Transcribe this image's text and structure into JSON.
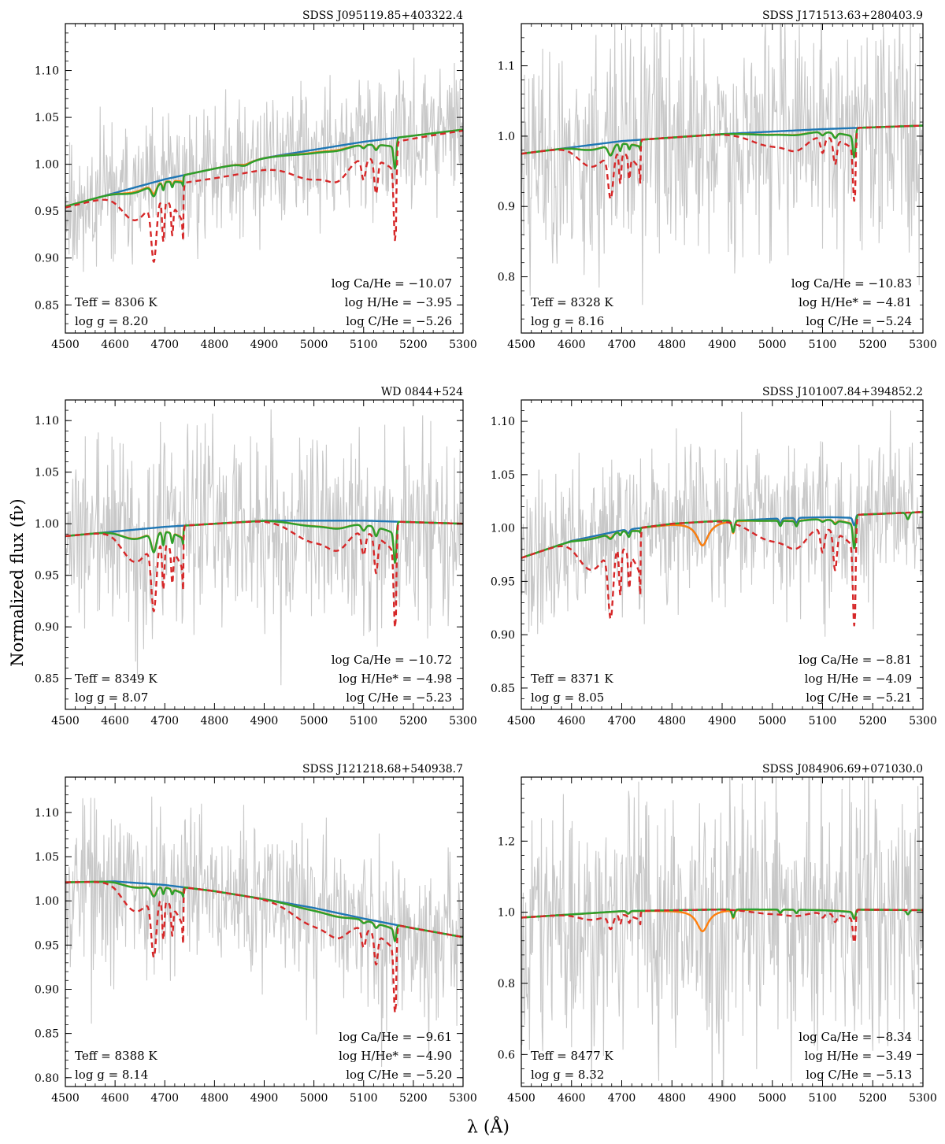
{
  "figure": {
    "ylabel": "Normalized flux (fν)",
    "xlabel": "λ (Å)"
  },
  "series_styles": {
    "observed": {
      "color": "#c8c8c8"
    },
    "blue": {
      "color": "#1f77b4"
    },
    "orange": {
      "color": "#ff7f0e"
    },
    "green": {
      "color": "#2ca02c"
    },
    "red_dashed": {
      "color": "#d62728"
    }
  },
  "chart_data": [
    {
      "type": "line",
      "title": "SDSS J095119.85+403322.4",
      "xlim": [
        4500,
        5300
      ],
      "ylim": [
        0.82,
        1.15
      ],
      "yticks": [
        0.85,
        0.9,
        0.95,
        1.0,
        1.05,
        1.1
      ],
      "ytick_labels": [
        "0.85",
        "0.90",
        "0.95",
        "1.00",
        "1.05",
        "1.10"
      ],
      "xticks": [
        4500,
        4600,
        4700,
        4800,
        4900,
        5000,
        5100,
        5200,
        5300
      ],
      "noise": {
        "amp": 0.035,
        "seed": 11
      },
      "left_text": [
        "Teff = 8306 K",
        "log g = 8.20"
      ],
      "right_text": [
        "log Ca/He = −10.07",
        "log H/He = −3.95",
        "log C/He = −5.26"
      ],
      "continuum": {
        "x": [
          4500,
          4700,
          4900,
          5100,
          5300
        ],
        "y": [
          0.955,
          0.984,
          1.007,
          1.024,
          1.037
        ]
      },
      "blue_strengths": {
        "C_swan": 0,
        "C_5165": 0,
        "C_other": 0,
        "H_beta": 0.003,
        "Ca": 0,
        "He": 0
      },
      "orange_strengths": {
        "C_swan": 0.25,
        "C_5165": 0.5,
        "C_other": 0.2,
        "H_beta": 0.003,
        "Ca": 0,
        "He": 0
      },
      "green_strengths": {
        "C_swan": 0.3,
        "C_5165": 0.5,
        "C_other": 0.25,
        "H_beta": 0.004,
        "Ca": 0,
        "He": 0
      },
      "red_strengths": {
        "C_swan": 1.0,
        "C_5165": 1.0,
        "C_other": 1.0,
        "H_beta": 0,
        "Ca": 0,
        "He": 0
      },
      "red_offset": -0.012
    },
    {
      "type": "line",
      "title": "SDSS J171513.63+280403.9",
      "xlim": [
        4500,
        5300
      ],
      "ylim": [
        0.72,
        1.16
      ],
      "yticks": [
        0.8,
        0.9,
        1.0,
        1.1
      ],
      "ytick_labels": [
        "0.8",
        "0.9",
        "1.0",
        "1.1"
      ],
      "xticks": [
        4500,
        4600,
        4700,
        4800,
        4900,
        5000,
        5100,
        5200,
        5300
      ],
      "noise": {
        "amp": 0.08,
        "seed": 23
      },
      "left_text": [
        "Teff = 8328 K",
        "log g = 8.16"
      ],
      "right_text": [
        "log Ca/He = −10.83",
        "log H/He* = −4.81",
        "log C/He = −5.24"
      ],
      "continuum": {
        "x": [
          4500,
          4700,
          4900,
          5100,
          5300
        ],
        "y": [
          0.975,
          0.993,
          1.003,
          1.01,
          1.015
        ]
      },
      "blue_strengths": {
        "C_swan": 0,
        "C_5165": 0,
        "C_other": 0,
        "H_beta": 0,
        "Ca": 0,
        "He": 0
      },
      "orange_strengths": {
        "C_swan": 0.35,
        "C_5165": 0.65,
        "C_other": 0.3,
        "H_beta": 0,
        "Ca": 0,
        "He": 0
      },
      "green_strengths": {
        "C_swan": 0.37,
        "C_5165": 0.65,
        "C_other": 0.33,
        "H_beta": 0,
        "Ca": 0,
        "He": 0
      },
      "red_strengths": {
        "C_swan": 1.0,
        "C_5165": 1.0,
        "C_other": 1.0,
        "H_beta": 0,
        "Ca": 0,
        "He": 0
      },
      "red_offset": 0
    },
    {
      "type": "line",
      "title": "WD 0844+524",
      "xlim": [
        4500,
        5300
      ],
      "ylim": [
        0.82,
        1.12
      ],
      "yticks": [
        0.85,
        0.9,
        0.95,
        1.0,
        1.05,
        1.1
      ],
      "ytick_labels": [
        "0.85",
        "0.90",
        "0.95",
        "1.00",
        "1.05",
        "1.10"
      ],
      "xticks": [
        4500,
        4600,
        4700,
        4800,
        4900,
        5000,
        5100,
        5200,
        5300
      ],
      "noise": {
        "amp": 0.045,
        "seed": 37
      },
      "left_text": [
        "Teff = 8349 K",
        "log g = 8.07"
      ],
      "right_text": [
        "log Ca/He = −10.72",
        "log H/He* = −4.98",
        "log C/He = −5.23"
      ],
      "continuum": {
        "x": [
          4500,
          4700,
          4900,
          5100,
          5300
        ],
        "y": [
          0.988,
          0.997,
          1.003,
          1.003,
          1.0
        ]
      },
      "blue_strengths": {
        "C_swan": 0,
        "C_5165": 0,
        "C_other": 0,
        "H_beta": 0,
        "Ca": 0,
        "He": 0
      },
      "orange_strengths": {
        "C_swan": 0.45,
        "C_5165": 0.62,
        "C_other": 0.38,
        "H_beta": 0,
        "Ca": 0,
        "He": 0
      },
      "green_strengths": {
        "C_swan": 0.47,
        "C_5165": 0.62,
        "C_other": 0.4,
        "H_beta": 0,
        "Ca": 0,
        "He": 0
      },
      "red_strengths": {
        "C_swan": 1.0,
        "C_5165": 1.0,
        "C_other": 1.0,
        "H_beta": 0,
        "Ca": 0,
        "He": 0
      },
      "red_offset": 0
    },
    {
      "type": "line",
      "title": "SDSS J101007.84+394852.2",
      "xlim": [
        4500,
        5300
      ],
      "ylim": [
        0.83,
        1.12
      ],
      "yticks": [
        0.85,
        0.9,
        0.95,
        1.0,
        1.05,
        1.1
      ],
      "ytick_labels": [
        "0.85",
        "0.90",
        "0.95",
        "1.00",
        "1.05",
        "1.10"
      ],
      "xticks": [
        4500,
        4600,
        4700,
        4800,
        4900,
        5000,
        5100,
        5200,
        5300
      ],
      "noise": {
        "amp": 0.035,
        "seed": 41
      },
      "left_text": [
        "Teff = 8371 K",
        "log g = 8.05"
      ],
      "right_text": [
        "log Ca/He = −8.81",
        "log H/He = −4.09",
        "log C/He = −5.21"
      ],
      "continuum": {
        "x": [
          4500,
          4600,
          4700,
          4800,
          4900,
          5000,
          5100,
          5200,
          5300
        ],
        "y": [
          0.972,
          0.988,
          0.998,
          1.004,
          1.007,
          1.009,
          1.011,
          1.013,
          1.015
        ]
      },
      "blue_strengths": {
        "C_swan": 0,
        "C_5165": 0.15,
        "C_other": 0,
        "H_beta": 0.022,
        "Ca": 0.6,
        "He": 0.6
      },
      "orange_strengths": {
        "C_swan": 0.1,
        "C_5165": 0.45,
        "C_other": 0.12,
        "H_beta": 0.022,
        "Ca": 0.6,
        "He": 0.6
      },
      "green_strengths": {
        "C_swan": 0.12,
        "C_5165": 0.48,
        "C_other": 0.15,
        "H_beta": 0.0,
        "Ca": 0.6,
        "He": 0.6
      },
      "red_strengths": {
        "C_swan": 1.0,
        "C_5165": 1.0,
        "C_other": 1.0,
        "H_beta": 0,
        "Ca": 0,
        "He": 0
      },
      "red_offset": 0.0
    },
    {
      "type": "line",
      "title": "SDSS J121218.68+540938.7",
      "xlim": [
        4500,
        5300
      ],
      "ylim": [
        0.79,
        1.14
      ],
      "yticks": [
        0.8,
        0.85,
        0.9,
        0.95,
        1.0,
        1.05,
        1.1
      ],
      "ytick_labels": [
        "0.80",
        "0.85",
        "0.90",
        "0.95",
        "1.00",
        "1.05",
        "1.10"
      ],
      "xticks": [
        4500,
        4600,
        4700,
        4800,
        4900,
        5000,
        5100,
        5200,
        5300
      ],
      "noise": {
        "amp": 0.045,
        "seed": 53
      },
      "left_text": [
        "Teff = 8388 K",
        "log g = 8.14"
      ],
      "right_text": [
        "log Ca/He = −9.61",
        "log H/He* = −4.90",
        "log C/He = −5.20"
      ],
      "continuum": {
        "x": [
          4500,
          4600,
          4700,
          4800,
          4900,
          5000,
          5100,
          5200,
          5300
        ],
        "y": [
          1.021,
          1.022,
          1.018,
          1.011,
          1.002,
          0.992,
          0.98,
          0.969,
          0.959
        ]
      },
      "blue_strengths": {
        "C_swan": 0,
        "C_5165": 0,
        "C_other": 0,
        "H_beta": 0,
        "Ca": 0,
        "He": 0
      },
      "orange_strengths": {
        "C_swan": 0.25,
        "C_5165": 0.28,
        "C_other": 0.22,
        "H_beta": 0,
        "Ca": 0,
        "He": 0
      },
      "green_strengths": {
        "C_swan": 0.27,
        "C_5165": 0.3,
        "C_other": 0.24,
        "H_beta": 0,
        "Ca": 0,
        "He": 0
      },
      "red_strengths": {
        "C_swan": 1.0,
        "C_5165": 1.0,
        "C_other": 1.0,
        "H_beta": 0,
        "Ca": 0,
        "He": 0
      },
      "red_offset": 0.0
    },
    {
      "type": "line",
      "title": "SDSS J084906.69+071030.0",
      "xlim": [
        4500,
        5300
      ],
      "ylim": [
        0.51,
        1.38
      ],
      "yticks": [
        0.6,
        0.8,
        1.0,
        1.2
      ],
      "ytick_labels": [
        "0.6",
        "0.8",
        "1.0",
        "1.2"
      ],
      "xticks": [
        4500,
        4600,
        4700,
        4800,
        4900,
        5000,
        5100,
        5200,
        5300
      ],
      "noise": {
        "amp": 0.17,
        "seed": 67
      },
      "left_text": [
        "Teff = 8477 K",
        "log g = 8.32"
      ],
      "right_text": [
        "log Ca/He = −8.34",
        "log H/He = −3.49",
        "log C/He = −5.13"
      ],
      "continuum": {
        "x": [
          4500,
          4700,
          4900,
          5100,
          5300
        ],
        "y": [
          0.985,
          1.003,
          1.008,
          1.008,
          1.006
        ]
      },
      "blue_strengths": {
        "C_swan": 0,
        "C_5165": 0.4,
        "C_other": 0,
        "H_beta": 0,
        "Ca": 1.2,
        "He": 1.2
      },
      "orange_strengths": {
        "C_swan": 0,
        "C_5165": 0.35,
        "C_other": 0,
        "H_beta": 0.06,
        "Ca": 1.2,
        "He": 1.2
      },
      "green_strengths": {
        "C_swan": 0,
        "C_5165": 0.4,
        "C_other": 0,
        "H_beta": 0,
        "Ca": 1.2,
        "He": 1.2
      },
      "red_strengths": {
        "C_swan": 0.6,
        "C_5165": 0.9,
        "C_other": 0.6,
        "H_beta": 0,
        "Ca": 0,
        "He": 0
      },
      "red_offset": 0.0
    }
  ]
}
